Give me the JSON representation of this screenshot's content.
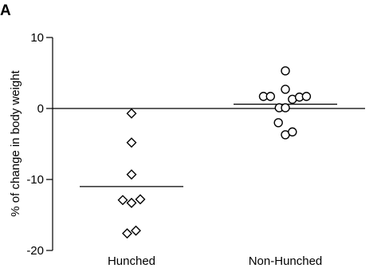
{
  "panel_label": "A",
  "chart_data": {
    "type": "scatter",
    "ylabel": "% of change in body weight",
    "xlabel": "",
    "ylim": [
      -20,
      10
    ],
    "yticks": [
      10,
      0,
      -10,
      -20
    ],
    "yticklabels": [
      "10",
      "0",
      "-10",
      "-20"
    ],
    "categories": [
      "Hunched",
      "Non-Hunched"
    ],
    "zero_line": true,
    "series": [
      {
        "category": "Hunched",
        "marker": "diamond",
        "points": [
          {
            "offset": 0,
            "y": -0.7
          },
          {
            "offset": 0,
            "y": -4.8
          },
          {
            "offset": 0,
            "y": -9.3
          },
          {
            "offset": -1,
            "y": -12.9
          },
          {
            "offset": 0,
            "y": -13.3
          },
          {
            "offset": 1,
            "y": -12.8
          },
          {
            "offset": -0.5,
            "y": -17.6
          },
          {
            "offset": 0.5,
            "y": -17.2
          }
        ],
        "mean": -11.0
      },
      {
        "category": "Non-Hunched",
        "marker": "circle",
        "points": [
          {
            "offset": 0,
            "y": 5.3
          },
          {
            "offset": 0,
            "y": 2.7
          },
          {
            "offset": -2.5,
            "y": 1.7
          },
          {
            "offset": -1.7,
            "y": 1.7
          },
          {
            "offset": 0.8,
            "y": 1.3
          },
          {
            "offset": 1.6,
            "y": 1.6
          },
          {
            "offset": 2.4,
            "y": 1.7
          },
          {
            "offset": -0.7,
            "y": 0.1
          },
          {
            "offset": 0,
            "y": 0.1
          },
          {
            "offset": -0.8,
            "y": -2.0
          },
          {
            "offset": 0,
            "y": -3.7
          },
          {
            "offset": 0.8,
            "y": -3.3
          }
        ],
        "mean": 0.6
      }
    ]
  }
}
